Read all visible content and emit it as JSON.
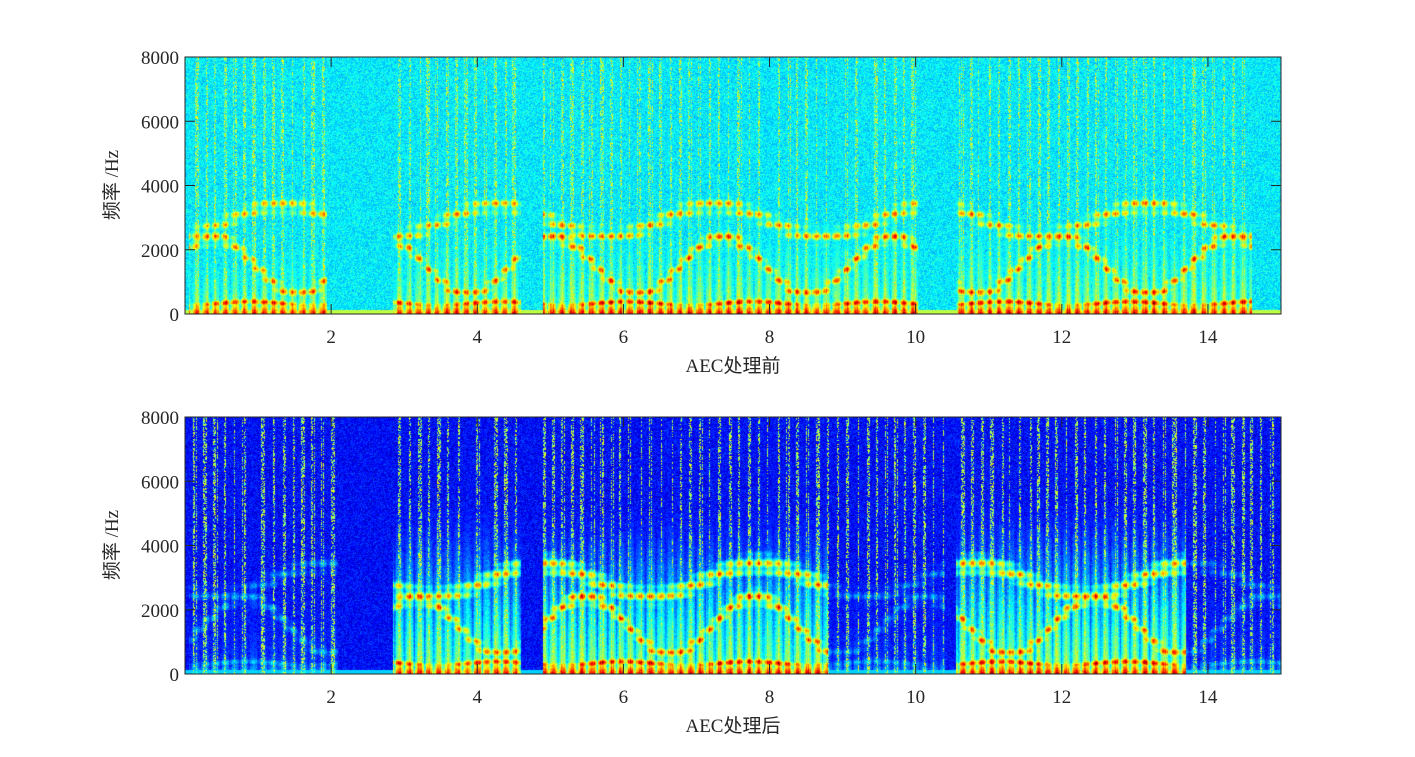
{
  "chart_data": [
    {
      "type": "heatmap",
      "variant": "spectrogram",
      "colormap": "jet",
      "xlabel": "AEC处理前",
      "ylabel": "频率 /Hz",
      "xlim": [
        0,
        15
      ],
      "ylim": [
        0,
        8000
      ],
      "xticks": [
        2,
        4,
        6,
        8,
        10,
        12,
        14
      ],
      "yticks": [
        0,
        2000,
        4000,
        6000,
        8000
      ],
      "grid": false,
      "background_level": 0.36,
      "voiced_segments": [
        {
          "start": 0.05,
          "end": 1.95,
          "level": 0.9,
          "max_freq": 4200
        },
        {
          "start": 2.85,
          "end": 4.6,
          "level": 0.92,
          "max_freq": 5200
        },
        {
          "start": 4.9,
          "end": 10.05,
          "level": 0.95,
          "max_freq": 5000
        },
        {
          "start": 10.55,
          "end": 14.6,
          "level": 0.95,
          "max_freq": 5300
        }
      ],
      "colorbar_color_anchors": [
        "#00008f",
        "#0000ff",
        "#00ffff",
        "#ffff00",
        "#ff0000",
        "#800000"
      ]
    },
    {
      "type": "heatmap",
      "variant": "spectrogram",
      "colormap": "jet",
      "xlabel": "AEC处理后",
      "ylabel": "频率 /Hz",
      "xlim": [
        0,
        15
      ],
      "ylim": [
        0,
        8000
      ],
      "xticks": [
        2,
        4,
        6,
        8,
        10,
        12,
        14
      ],
      "yticks": [
        0,
        2000,
        4000,
        6000,
        8000
      ],
      "grid": false,
      "background_level": 0.13,
      "voiced_segments": [
        {
          "start": 0.05,
          "end": 2.1,
          "level": 0.38,
          "max_freq": 3500
        },
        {
          "start": 2.85,
          "end": 4.6,
          "level": 0.92,
          "max_freq": 5200
        },
        {
          "start": 4.9,
          "end": 8.8,
          "level": 0.95,
          "max_freq": 5000
        },
        {
          "start": 8.8,
          "end": 10.4,
          "level": 0.36,
          "max_freq": 3800
        },
        {
          "start": 10.55,
          "end": 13.7,
          "level": 0.95,
          "max_freq": 5300
        },
        {
          "start": 13.7,
          "end": 15.0,
          "level": 0.36,
          "max_freq": 3800
        }
      ],
      "colorbar_color_anchors": [
        "#00008f",
        "#0000ff",
        "#00ffff",
        "#ffff00",
        "#ff0000",
        "#800000"
      ]
    }
  ]
}
